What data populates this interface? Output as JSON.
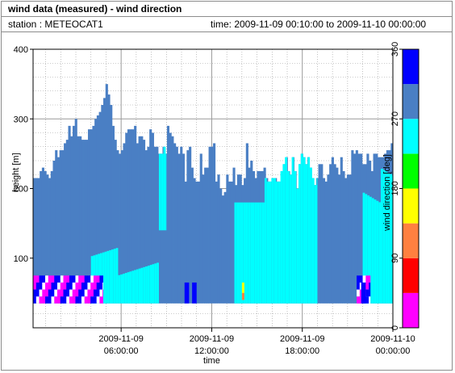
{
  "header": {
    "title": "wind data (measured) - wind direction",
    "station": "station : METEOCAT1",
    "time_span": "time: 2009-11-09 00:10:00 to 2009-11-10 00:00:00"
  },
  "colors": {
    "background": "#ffffff",
    "grid": "#9a9a9a",
    "main_fill": "#4a7fc4",
    "cyan": "#00ffff"
  },
  "chart_data": {
    "type": "heatmap",
    "title": "wind data (measured) - wind direction",
    "xlabel": "time",
    "ylabel": "height [m]",
    "colorbar_label": "wind direction [deg]",
    "x_range": [
      "2009-11-09 00:10:00",
      "2009-11-10 00:00:00"
    ],
    "x_tick_labels": [
      [
        "2009-11-09",
        "06:00:00"
      ],
      [
        "2009-11-09",
        "12:00:00"
      ],
      [
        "2009-11-09",
        "18:00:00"
      ],
      [
        "2009-11-10",
        "00:00:00"
      ]
    ],
    "ylim": [
      0,
      400
    ],
    "y_ticks": [
      100,
      200,
      300,
      400
    ],
    "colorbar": {
      "range": [
        0,
        360
      ],
      "ticks": [
        0,
        90,
        180,
        270,
        360
      ],
      "bins": [
        {
          "from": 0,
          "to": 45,
          "color": "#ff00ff"
        },
        {
          "from": 45,
          "to": 90,
          "color": "#ff0000"
        },
        {
          "from": 90,
          "to": 135,
          "color": "#ff8040"
        },
        {
          "from": 135,
          "to": 180,
          "color": "#ffff00"
        },
        {
          "from": 180,
          "to": 225,
          "color": "#00ff00"
        },
        {
          "from": 225,
          "to": 270,
          "color": "#00ffff"
        },
        {
          "from": 270,
          "to": 315,
          "color": "#4a7fc4"
        },
        {
          "from": 315,
          "to": 360,
          "color": "#0000ff"
        }
      ]
    },
    "profile_top_height_m": [
      215,
      215,
      215,
      225,
      230,
      225,
      220,
      215,
      225,
      240,
      255,
      245,
      255,
      255,
      265,
      270,
      290,
      275,
      290,
      300,
      275,
      275,
      270,
      270,
      270,
      285,
      285,
      290,
      300,
      305,
      310,
      320,
      330,
      350,
      335,
      320,
      290,
      270,
      255,
      250,
      255,
      265,
      280,
      285,
      285,
      285,
      290,
      265,
      275,
      275,
      270,
      255,
      260,
      285,
      280,
      260,
      260,
      250,
      250,
      260,
      250,
      290,
      280,
      275,
      265,
      260,
      250,
      260,
      250,
      210,
      255,
      260,
      230,
      215,
      210,
      210,
      250,
      220,
      230,
      230,
      260,
      260,
      265,
      210,
      220,
      200,
      190,
      195,
      220,
      210,
      210,
      230,
      205,
      220,
      220,
      205,
      215,
      265,
      230,
      240,
      225,
      215,
      225,
      225,
      225,
      230,
      215,
      210,
      210,
      215,
      215,
      210,
      210,
      225,
      235,
      245,
      225,
      220,
      245,
      225,
      200,
      235,
      250,
      245,
      235,
      245,
      230,
      215,
      205,
      215,
      235,
      235,
      215,
      210,
      220,
      235,
      245,
      235,
      230,
      220,
      245,
      225,
      215,
      220,
      220,
      255,
      250,
      255,
      250,
      250,
      235,
      235,
      250,
      240,
      225,
      250,
      250,
      245,
      245,
      245,
      250,
      255,
      255,
      265
    ],
    "cyan_regions": [
      {
        "from": "2009-11-09 04:00:00",
        "to": "2009-11-09 08:30:00",
        "note": "lower band"
      },
      {
        "from": "2009-11-09 08:30:00",
        "to": "2009-11-09 09:00:00",
        "note": "upper band"
      },
      {
        "from": "2009-11-09 13:30:00",
        "to": "2009-11-09 15:30:00"
      },
      {
        "from": "2009-11-09 15:30:00",
        "to": "2009-11-09 19:00:00"
      },
      {
        "from": "2009-11-09 22:00:00",
        "to": "2009-11-10 00:00:00"
      }
    ],
    "profile_bottom_height_m": 35,
    "notes": "Dominant wind direction 270-315 deg; 225-270 deg regions appear in afternoon/evening; 0-90 and 315-360 deg patches near the surface in early hours and around 21:30."
  }
}
